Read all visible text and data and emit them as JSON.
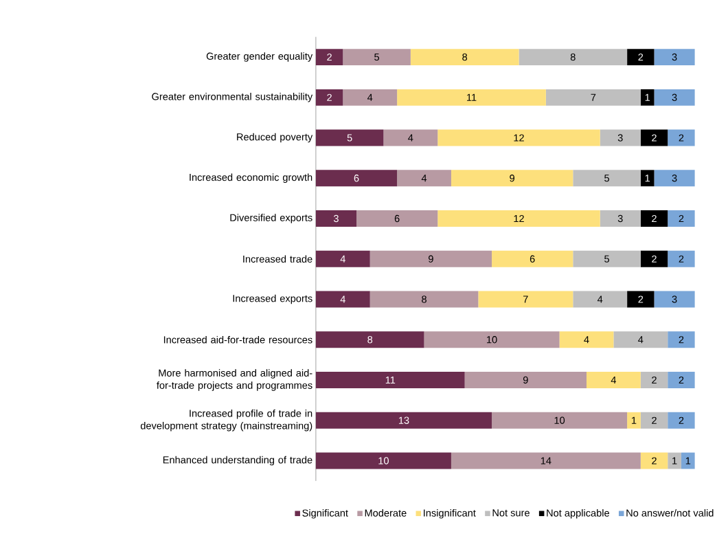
{
  "chart_data": {
    "type": "bar",
    "orientation": "horizontal",
    "stacked": true,
    "data_labels": true,
    "legend": "bottom",
    "categories": [
      "Greater gender equality",
      "Greater environmental sustainability",
      "Reduced poverty",
      "Increased economic growth",
      "Diversified exports",
      "Increased trade",
      "Increased exports",
      "Increased aid-for-trade resources",
      "More harmonised and aligned aid-for-trade projects and programmes",
      "Increased profile of trade in development strategy (mainstreaming)",
      "Enhanced understanding of trade"
    ],
    "series": [
      {
        "name": "Significant",
        "color": "#6b2d4e",
        "values": [
          2,
          2,
          5,
          6,
          3,
          4,
          4,
          8,
          11,
          13,
          10
        ]
      },
      {
        "name": "Moderate",
        "color": "#b89aa3",
        "values": [
          5,
          4,
          4,
          4,
          6,
          9,
          8,
          10,
          9,
          10,
          14
        ]
      },
      {
        "name": "Insignificant",
        "color": "#fde07c",
        "values": [
          8,
          11,
          12,
          9,
          12,
          6,
          7,
          4,
          4,
          1,
          2
        ]
      },
      {
        "name": "Not sure",
        "color": "#bfbfbf",
        "values": [
          8,
          7,
          3,
          5,
          3,
          5,
          4,
          4,
          2,
          2,
          1
        ]
      },
      {
        "name": "Not applicable",
        "color": "#000000",
        "values": [
          2,
          1,
          2,
          1,
          2,
          2,
          2,
          null,
          null,
          null,
          null
        ]
      },
      {
        "name": "No answer/not valid",
        "color": "#7aa6d8",
        "values": [
          3,
          3,
          2,
          3,
          2,
          2,
          3,
          2,
          2,
          2,
          1
        ]
      }
    ]
  }
}
